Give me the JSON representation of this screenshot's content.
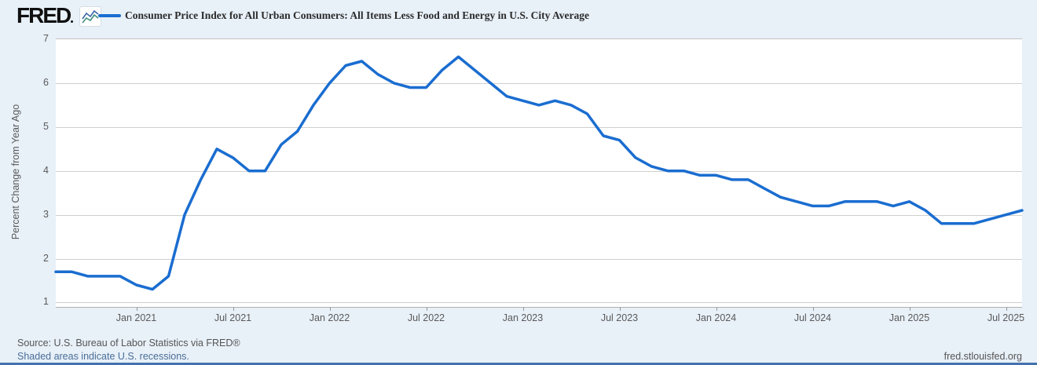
{
  "header": {
    "logo": "FRED",
    "logo_icon": "fred-squiggle-icon"
  },
  "footer": {
    "source": "Source: U.S. Bureau of Labor Statistics via FRED®",
    "recession_note": "Shaded areas indicate U.S. recessions.",
    "site": "fred.stlouisfed.org"
  },
  "colors": {
    "line": "#1a6dd0",
    "background": "#e8f0f8",
    "plot_background": "#ffffff",
    "gridline": "#cfcfcf",
    "axis_text": "#5a5a5a",
    "link": "#4a6e98",
    "bottom_bar": "#4472b0",
    "logo_icon_blue": "#3a66a8",
    "logo_icon_teal": "#3d8f7c"
  },
  "chart_data": {
    "type": "line",
    "title": "Consumer Price Index for All Urban Consumers: All Items Less Food and Energy in U.S. City Average",
    "xlabel": "",
    "ylabel": "Percent Change from Year Ago",
    "ylim": [
      0.9,
      7.0
    ],
    "y_ticks": [
      1,
      2,
      3,
      4,
      5,
      6,
      7
    ],
    "grid": true,
    "legend_position": "top",
    "x": [
      "2020-08",
      "2020-09",
      "2020-10",
      "2020-11",
      "2020-12",
      "2021-01",
      "2021-02",
      "2021-03",
      "2021-04",
      "2021-05",
      "2021-06",
      "2021-07",
      "2021-08",
      "2021-09",
      "2021-10",
      "2021-11",
      "2021-12",
      "2022-01",
      "2022-02",
      "2022-03",
      "2022-04",
      "2022-05",
      "2022-06",
      "2022-07",
      "2022-08",
      "2022-09",
      "2022-10",
      "2022-11",
      "2022-12",
      "2023-01",
      "2023-02",
      "2023-03",
      "2023-04",
      "2023-05",
      "2023-06",
      "2023-07",
      "2023-08",
      "2023-09",
      "2023-10",
      "2023-11",
      "2023-12",
      "2024-01",
      "2024-02",
      "2024-03",
      "2024-04",
      "2024-05",
      "2024-06",
      "2024-07",
      "2024-08",
      "2024-09",
      "2024-10",
      "2024-11",
      "2024-12",
      "2025-01",
      "2025-02",
      "2025-03",
      "2025-04",
      "2025-05",
      "2025-06",
      "2025-07",
      "2025-08"
    ],
    "x_ticks": [
      {
        "label": "Jan 2021",
        "month": "2021-01"
      },
      {
        "label": "Jul 2021",
        "month": "2021-07"
      },
      {
        "label": "Jan 2022",
        "month": "2022-01"
      },
      {
        "label": "Jul 2022",
        "month": "2022-07"
      },
      {
        "label": "Jan 2023",
        "month": "2023-01"
      },
      {
        "label": "Jul 2023",
        "month": "2023-07"
      },
      {
        "label": "Jan 2024",
        "month": "2024-01"
      },
      {
        "label": "Jul 2024",
        "month": "2024-07"
      },
      {
        "label": "Jan 2025",
        "month": "2025-01"
      },
      {
        "label": "Jul 2025",
        "month": "2025-07"
      }
    ],
    "series": [
      {
        "name": "Consumer Price Index for All Urban Consumers: All Items Less Food and Energy in U.S. City Average",
        "color": "#1a6dd0",
        "values": [
          1.7,
          1.7,
          1.6,
          1.6,
          1.6,
          1.4,
          1.3,
          1.6,
          3.0,
          3.8,
          4.5,
          4.3,
          4.0,
          4.0,
          4.6,
          4.9,
          5.5,
          6.0,
          6.4,
          6.5,
          6.2,
          6.0,
          5.9,
          5.9,
          6.3,
          6.6,
          6.3,
          6.0,
          5.7,
          5.6,
          5.5,
          5.6,
          5.5,
          5.3,
          4.8,
          4.7,
          4.3,
          4.1,
          4.0,
          4.0,
          3.9,
          3.9,
          3.8,
          3.8,
          3.6,
          3.4,
          3.3,
          3.2,
          3.2,
          3.3,
          3.3,
          3.3,
          3.2,
          3.3,
          3.1,
          2.8,
          2.8,
          2.8,
          2.9,
          3.0,
          3.1
        ]
      }
    ]
  }
}
